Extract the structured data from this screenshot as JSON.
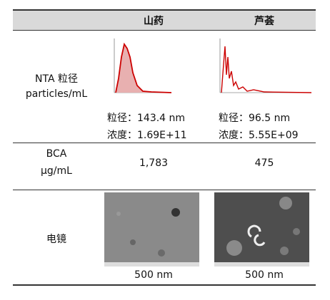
{
  "table": {
    "header": [
      "山药",
      "芦荟"
    ],
    "rows": [
      {
        "label": [
          "NTA 粒径",
          "particles/mL"
        ],
        "cells": [
          [
            "粒径：143.4 nm",
            "浓度：1.69E+11"
          ],
          [
            "粒径：96.5 nm",
            "浓度：5.55E+09"
          ]
        ]
      },
      {
        "label": [
          "BCA",
          "μg/mL"
        ],
        "cells": [
          [
            "1,783"
          ],
          [
            "475"
          ]
        ]
      },
      {
        "label": [
          "电镜"
        ],
        "cells": [
          [
            "500 nm"
          ],
          [
            "500 nm"
          ]
        ]
      }
    ]
  }
}
